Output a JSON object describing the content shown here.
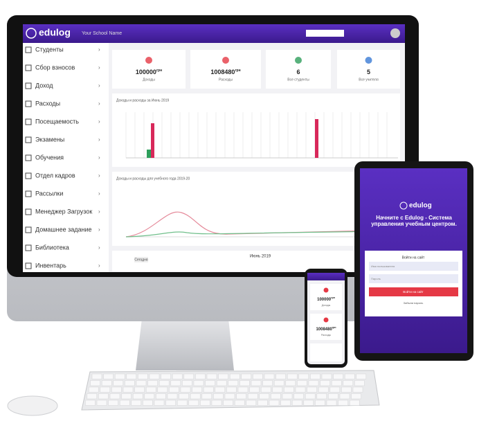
{
  "header": {
    "brand": "edulog",
    "school": "Your School Name"
  },
  "sidebar": {
    "items": [
      "Студенты",
      "Сбор взносов",
      "Доход",
      "Расходы",
      "Посещаемость",
      "Экзамены",
      "Обучения",
      "Отдел кадров",
      "Рассылки",
      "Менеджер Загрузок",
      "Домашнее задание",
      "Библиотека",
      "Инвентарь"
    ]
  },
  "stats": [
    {
      "value": "100000",
      "unit": "грн",
      "label": "Доходы"
    },
    {
      "value": "1008480",
      "unit": "грн",
      "label": "Расходы"
    },
    {
      "value": "6",
      "label": "Все студенты"
    },
    {
      "value": "5",
      "label": "Все учителя"
    }
  ],
  "charts": {
    "monthly_title": "Доходы и расходы за Июнь 2019",
    "yearly_title": "Доходы и расходы для учебного года 2019-20"
  },
  "calendar": {
    "title": "Июнь 2019",
    "today": "Сегодня"
  },
  "tablet": {
    "brand": "edulog",
    "title": "Начните с Edulog - Система управления учебным центром.",
    "login_title": "Войти на сайт",
    "username": "Имя пользователя",
    "password": "Пароль",
    "button": "Войти на сайт",
    "forgot": "Забыли пароль"
  },
  "phone": {
    "cards": [
      {
        "value": "100000",
        "unit": "грн",
        "label": "Доходы"
      },
      {
        "value": "1008480",
        "unit": "грн",
        "label": "Расходы"
      }
    ]
  }
}
